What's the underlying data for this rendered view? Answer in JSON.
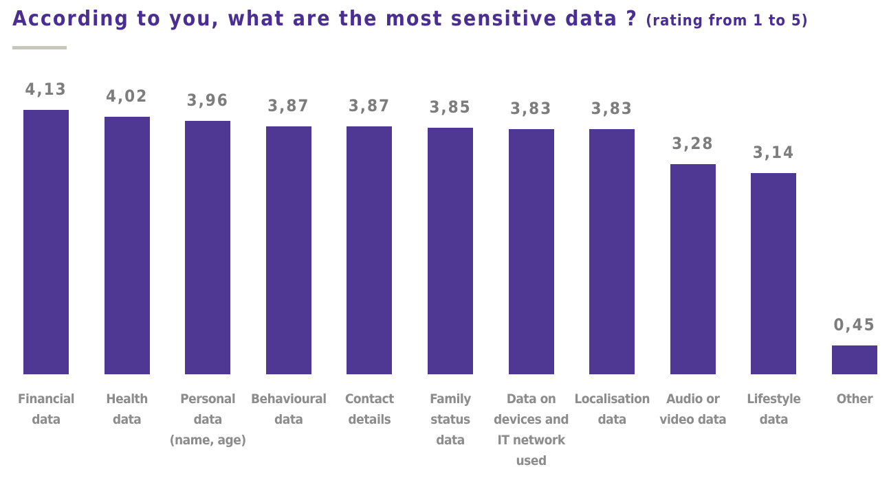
{
  "chart_data": {
    "type": "bar",
    "title": "According to you, what are the most sensitive data ?",
    "subtitle": "(rating from 1 to 5)",
    "categories": [
      "Financial\ndata",
      "Health\ndata",
      "Personal\ndata\n(name, age)",
      "Behavioural\ndata",
      "Contact\ndetails",
      "Family\nstatus\ndata",
      "Data on\ndevices and\nIT network\nused",
      "Localisation\ndata",
      "Audio or\nvideo data",
      "Lifestyle\ndata",
      "Other"
    ],
    "values": [
      4.13,
      4.02,
      3.96,
      3.87,
      3.87,
      3.85,
      3.83,
      3.83,
      3.28,
      3.14,
      0.45
    ],
    "value_labels": [
      "4,13",
      "4,02",
      "3,96",
      "3,87",
      "3,87",
      "3,85",
      "3,83",
      "3,83",
      "3,28",
      "3,14",
      "0,45"
    ],
    "color": "#4f3893"
  }
}
